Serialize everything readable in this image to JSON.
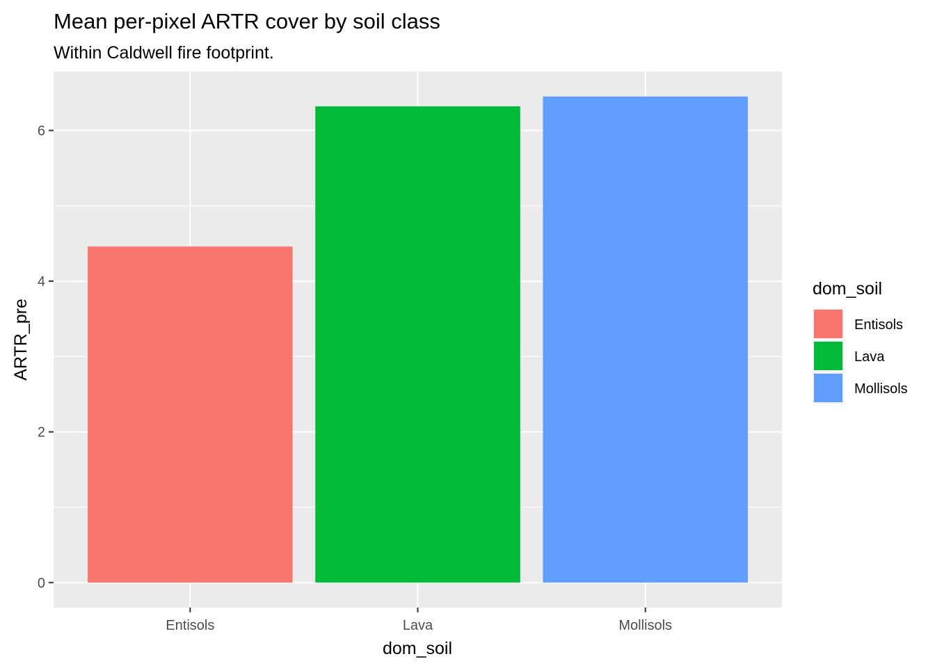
{
  "chart_data": {
    "type": "bar",
    "title": "Mean per-pixel ARTR cover by soil class",
    "subtitle": "Within Caldwell fire footprint.",
    "xlabel": "dom_soil",
    "ylabel": "ARTR_pre",
    "categories": [
      "Entisols",
      "Lava",
      "Mollisols"
    ],
    "values": [
      4.46,
      6.32,
      6.45
    ],
    "colors": [
      "#F8766D",
      "#00BA38",
      "#619CFF"
    ],
    "ylim": [
      -0.33,
      6.78
    ],
    "y_ticks": [
      0,
      2,
      4,
      6
    ],
    "y_minor_ticks": [
      1,
      3,
      5
    ],
    "grid": true,
    "panel_background": "#EBEBEB",
    "legend": {
      "title": "dom_soil",
      "placement": "right",
      "entries": [
        "Entisols",
        "Lava",
        "Mollisols"
      ]
    }
  }
}
